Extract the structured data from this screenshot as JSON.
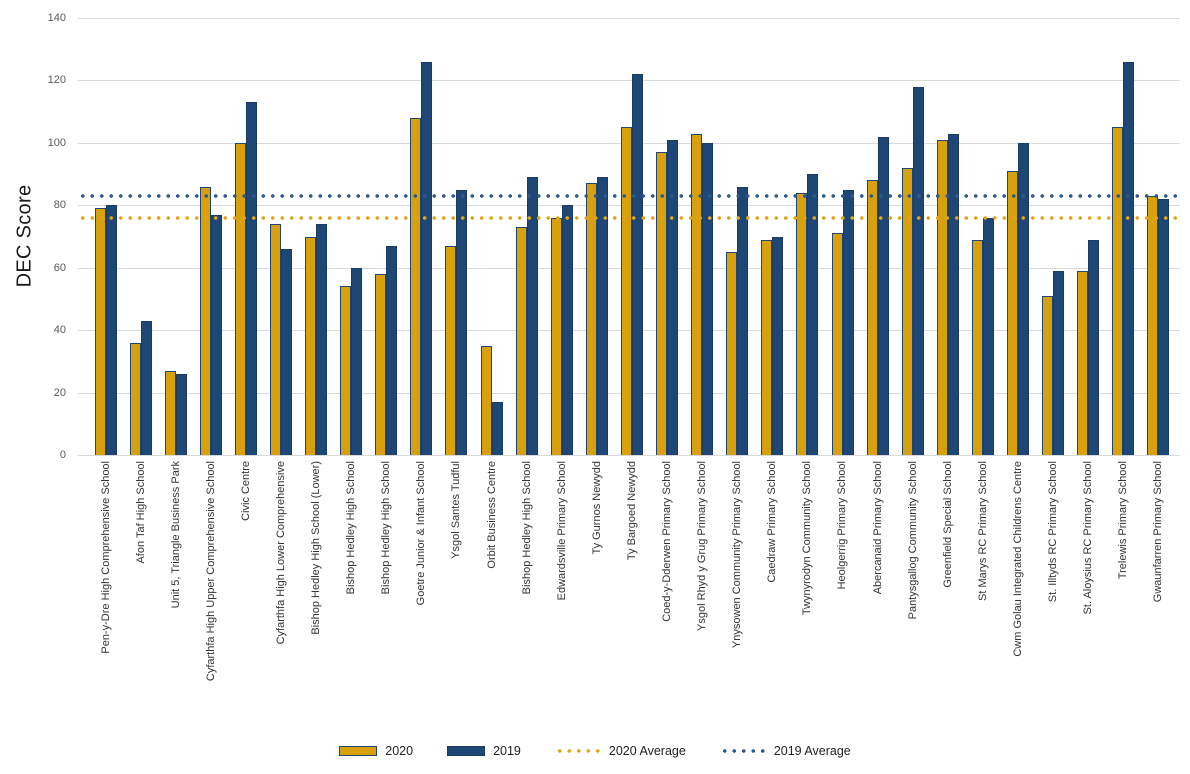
{
  "chart_data": {
    "type": "bar",
    "title": "",
    "xlabel": "",
    "ylabel": "DEC Score",
    "ylim": [
      0,
      140
    ],
    "yticks": [
      0,
      20,
      40,
      60,
      80,
      100,
      120,
      140
    ],
    "grid": true,
    "legend_position": "bottom",
    "categories": [
      "Pen-y-Dre High Comprehensive School",
      "Afon Taf High School",
      "Unit 5, Triangle Business Park",
      "Cyfarthfa High Upper Comprehensive School",
      "Civic Centre",
      "Cyfarthfa High Lower Comprehensive",
      "Bishop Hedley High School (Lower)",
      "Bishop Hedley High School",
      "Bishop Hedley High School",
      "Goetre Junior & Infant School",
      "Ysgol Santes Tudful",
      "Orbit Business Centre",
      "Bishop Hedley High School",
      "Edwardsville Primary School",
      "Ty Gurnos Newydd",
      "Ty Bargoed Newydd",
      "Coed-y-Dderwen Primary School",
      "Ysgol Rhyd y Grug Primary School",
      "Ynysowen Community Primary School",
      "Caedraw Primary School",
      "Twynyrodyn Community School",
      "Heolgerrig Primary School",
      "Abercanaid Primary School",
      "Pantysgallog Community School",
      "Greenfield Special School",
      "St Marys RC Primary School",
      "Cwm Golau Integrated Childrens Centre",
      "St. Illtyds RC Primary School",
      "St. Aloysius RC Primary School",
      "Trelewis Primary School",
      "Gwaunfarren Primary School"
    ],
    "series": [
      {
        "name": "2020",
        "color": "#D9A00E",
        "border_color": "#1F4776",
        "values": [
          79,
          36,
          27,
          86,
          100,
          74,
          70,
          54,
          58,
          108,
          67,
          35,
          73,
          76,
          87,
          105,
          97,
          103,
          65,
          69,
          84,
          71,
          88,
          92,
          101,
          69,
          91,
          51,
          59,
          105,
          83
        ]
      },
      {
        "name": "2019",
        "color": "#1F4776",
        "border_color": "#1A3C63",
        "values": [
          80,
          43,
          26,
          77,
          113,
          66,
          74,
          60,
          67,
          126,
          85,
          17,
          89,
          80,
          89,
          122,
          101,
          100,
          86,
          70,
          90,
          85,
          102,
          118,
          103,
          76,
          100,
          59,
          69,
          126,
          82
        ]
      }
    ],
    "average_lines": [
      {
        "name": "2020 Average",
        "value": 76,
        "color": "#E2A417"
      },
      {
        "name": "2019 Average",
        "value": 83,
        "color": "#2E5A8B"
      }
    ]
  }
}
